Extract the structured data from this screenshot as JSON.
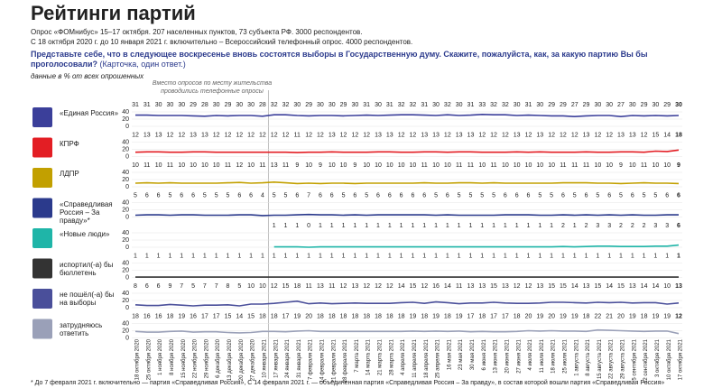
{
  "header": {
    "title": "Рейтинги партий",
    "subtitle1": "Опрос «ФОМнибус» 15–17 октября. 207 населенных пунктов, 73 субъекта РФ. 3000 респондентов.",
    "subtitle2": "С 18 октября 2020 г. до 10 января 2021 г. включительно – Всероссийский телефонный опрос. 4000 респондентов.",
    "question": "Представьте себе, что в следующее воскресенье вновь состоятся выборы в Государственную думу. Скажите, пожалуйста, как, за какую партию Вы бы проголосовали?",
    "question_note": "(Карточка, один ответ.)",
    "units": "данные в % от всех опрошенных"
  },
  "footnote": "* До 7 февраля 2021 г. включительно — партия «Справедливая Россия», С 14 февраля 2021 г. — объединенная партия «Справедливая Россия – За правду», в состав которой вошли партия «Справедливая Россия»",
  "chart_data": {
    "type": "line",
    "annotation": "Вместо опросов по месту жительства проводились телефонные опросы",
    "x": [
      "18 октября 2020",
      "25 октября 2020",
      "1 ноября 2020",
      "8 ноября 2020",
      "15 ноября 2020",
      "22 ноября 2020",
      "29 ноября 2020",
      "6 декабря 2020",
      "13 декабря 2020",
      "20 декабря 2020",
      "27 декабря 2020",
      "10 января 2021",
      "17 января 2021",
      "24 января 2021",
      "31 января 2021",
      "7 февраля 2021",
      "14 февраля 2021",
      "21 февраля 2021",
      "28 февраля 2021",
      "7 марта 2021",
      "14 марта 2021",
      "21 марта 2021",
      "28 марта 2021",
      "4 апреля 2021",
      "11 апреля 2021",
      "18 апреля 2021",
      "25 апреля 2021",
      "16 мая 2021",
      "23 мая 2021",
      "30 мая 2021",
      "6 июня 2021",
      "13 июня 2021",
      "20 июня 2021",
      "27 июня 2021",
      "4 июля 2021",
      "11 июля 2021",
      "18 июля 2021",
      "25 июля 2021",
      "1 августа 2021",
      "8 августа 2021",
      "15 августа 2021",
      "22 августа 2021",
      "29 августа 2021",
      "5 сентября 2021",
      "12 сентября 2021",
      "3 октября 2021",
      "10 октября 2021",
      "17 октября 2021"
    ],
    "ylim": [
      0,
      40
    ],
    "yticks": [
      0,
      20,
      40
    ],
    "series": [
      {
        "name": "«Единая Россия»",
        "color": "#3b3f9a",
        "values": [
          31,
          31,
          30,
          30,
          30,
          29,
          28,
          30,
          29,
          30,
          30,
          28,
          32,
          32,
          30,
          29,
          30,
          30,
          29,
          30,
          31,
          30,
          31,
          32,
          32,
          31,
          30,
          32,
          30,
          31,
          33,
          32,
          32,
          30,
          31,
          30,
          29,
          29,
          27,
          29,
          30,
          30,
          27,
          30,
          29,
          30,
          29,
          30
        ]
      },
      {
        "name": "КПРФ",
        "color": "#e31e24",
        "values": [
          12,
          13,
          13,
          12,
          12,
          13,
          13,
          12,
          12,
          12,
          12,
          12,
          12,
          12,
          11,
          12,
          12,
          13,
          12,
          12,
          12,
          13,
          13,
          12,
          12,
          13,
          13,
          12,
          13,
          13,
          12,
          12,
          12,
          13,
          12,
          13,
          12,
          12,
          12,
          13,
          12,
          12,
          13,
          13,
          12,
          15,
          14,
          18
        ]
      },
      {
        "name": "ЛДПР",
        "color": "#c2a000",
        "values": [
          10,
          11,
          10,
          11,
          10,
          10,
          10,
          10,
          11,
          12,
          10,
          11,
          13,
          11,
          9,
          10,
          9,
          10,
          10,
          9,
          10,
          10,
          10,
          10,
          10,
          11,
          10,
          10,
          11,
          11,
          10,
          11,
          10,
          10,
          10,
          10,
          10,
          11,
          11,
          11,
          10,
          10,
          9,
          10,
          11,
          10,
          10,
          9
        ]
      },
      {
        "name": "«Справедливая Россия – За правду»*",
        "color": "#2b3a8c",
        "values": [
          5,
          6,
          6,
          5,
          6,
          6,
          5,
          5,
          5,
          6,
          6,
          4,
          5,
          5,
          6,
          7,
          6,
          6,
          5,
          6,
          5,
          6,
          6,
          6,
          6,
          6,
          5,
          6,
          5,
          5,
          5,
          5,
          6,
          6,
          6,
          5,
          5,
          6,
          5,
          6,
          5,
          6,
          5,
          6,
          5,
          5,
          6,
          6
        ]
      },
      {
        "name": "«Новые люди»",
        "color": "#1fb5a8",
        "values": [
          null,
          null,
          null,
          null,
          null,
          null,
          null,
          null,
          null,
          null,
          null,
          null,
          1,
          1,
          1,
          0,
          1,
          1,
          1,
          1,
          1,
          1,
          1,
          1,
          1,
          1,
          1,
          1,
          1,
          1,
          1,
          1,
          1,
          1,
          1,
          1,
          1,
          2,
          1,
          2,
          3,
          3,
          2,
          2,
          2,
          3,
          3,
          6
        ]
      },
      {
        "name": "испортил(-а) бы бюллетень",
        "color": "#333333",
        "values": [
          1,
          1,
          1,
          1,
          1,
          1,
          1,
          1,
          1,
          1,
          1,
          1,
          1,
          1,
          1,
          1,
          1,
          1,
          1,
          1,
          1,
          1,
          1,
          1,
          1,
          1,
          1,
          1,
          1,
          1,
          1,
          1,
          1,
          1,
          1,
          1,
          1,
          1,
          1,
          1,
          1,
          1,
          1,
          1,
          1,
          1,
          1,
          1
        ]
      },
      {
        "name": "не пошёл(-а) бы на выборы",
        "color": "#4a4f9a",
        "values": [
          8,
          6,
          6,
          9,
          7,
          5,
          7,
          7,
          8,
          5,
          10,
          10,
          12,
          15,
          18,
          11,
          13,
          11,
          12,
          13,
          12,
          12,
          12,
          14,
          15,
          12,
          16,
          14,
          11,
          13,
          13,
          15,
          13,
          12,
          12,
          13,
          15,
          15,
          14,
          13,
          15,
          14,
          15,
          13,
          14,
          14,
          10,
          13
        ]
      },
      {
        "name": "затрудняюсь ответить",
        "color": "#9aa0b8",
        "values": [
          18,
          16,
          16,
          18,
          19,
          16,
          17,
          17,
          15,
          14,
          15,
          18,
          18,
          17,
          19,
          20,
          18,
          18,
          18,
          18,
          18,
          18,
          18,
          18,
          19,
          18,
          19,
          18,
          19,
          17,
          18,
          17,
          17,
          18,
          20,
          19,
          20,
          19,
          19,
          18,
          22,
          21,
          20,
          19,
          18,
          19,
          19,
          12
        ]
      }
    ]
  }
}
